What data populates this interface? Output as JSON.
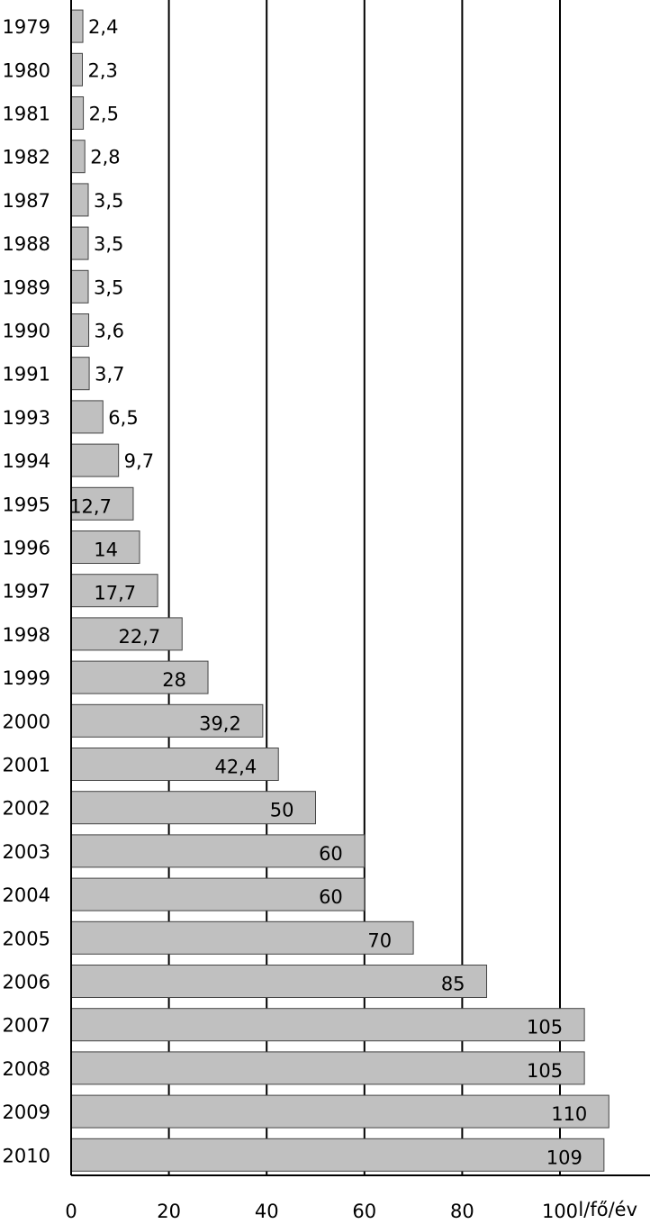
{
  "chart_data": {
    "type": "bar",
    "orientation": "horizontal",
    "categories": [
      "1979",
      "1980",
      "1981",
      "1982",
      "1987",
      "1988",
      "1989",
      "1990",
      "1991",
      "1993",
      "1994",
      "1995",
      "1996",
      "1997",
      "1998",
      "1999",
      "2000",
      "2001",
      "2002",
      "2003",
      "2004",
      "2005",
      "2006",
      "2007",
      "2008",
      "2009",
      "2010"
    ],
    "values": [
      2.4,
      2.3,
      2.5,
      2.8,
      3.5,
      3.5,
      3.5,
      3.6,
      3.7,
      6.5,
      9.7,
      12.7,
      14,
      17.7,
      22.7,
      28,
      39.2,
      42.4,
      50,
      60,
      60,
      70,
      85,
      105,
      105,
      110,
      109
    ],
    "value_labels": [
      "2,4",
      "2,3",
      "2,5",
      "2,8",
      "3,5",
      "3,5",
      "3,5",
      "3,6",
      "3,7",
      "6,5",
      "9,7",
      "12,7",
      "14",
      "17,7",
      "22,7",
      "28",
      "39,2",
      "42,4",
      "50",
      "60",
      "60",
      "70",
      "85",
      "105",
      "105",
      "110",
      "109"
    ],
    "x_ticks": [
      "0",
      "20",
      "40",
      "60",
      "80",
      "100"
    ],
    "x_tick_values": [
      0,
      20,
      40,
      60,
      80,
      100
    ],
    "xlabel": "l/fő/év",
    "xlim": [
      0,
      118
    ],
    "grid": "vertical",
    "bar_color": "#c0c0c0",
    "bar_edge_color": "#444444",
    "grid_color": "#000000"
  }
}
